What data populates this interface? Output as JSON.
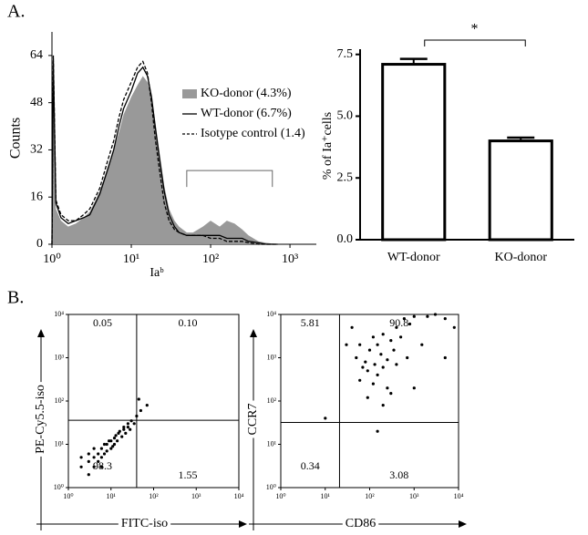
{
  "panels": [
    "A.",
    "B."
  ],
  "chart_data": [
    {
      "type": "line",
      "xlabel": "Iaᵇ",
      "ylabel": "Counts",
      "log_x": true,
      "xlim": [
        1,
        2150
      ],
      "ylim": [
        0,
        72
      ],
      "xticks": [
        {
          "value": 1,
          "label": "10⁰"
        },
        {
          "value": 10,
          "label": "10¹"
        },
        {
          "value": 100,
          "label": "10²"
        },
        {
          "value": 1000,
          "label": "10³"
        }
      ],
      "yticks": [
        0,
        16,
        32,
        48,
        64
      ],
      "x": [
        1,
        1.04,
        1.12,
        1.3,
        1.6,
        2,
        2.5,
        3,
        4,
        5,
        6,
        7,
        8,
        10,
        12,
        14,
        16,
        18,
        20,
        23,
        26,
        30,
        35,
        40,
        50,
        60,
        80,
        100,
        130,
        160,
        200,
        250,
        300,
        400,
        500,
        700
      ],
      "series": [
        {
          "name": "KO-donor (4.3%)",
          "color": "#999999",
          "style": "filled",
          "values": [
            0,
            55,
            12,
            8,
            6,
            7,
            9,
            11,
            18,
            26,
            32,
            38,
            44,
            50,
            54,
            57,
            55,
            50,
            42,
            30,
            20,
            12,
            8,
            6,
            4,
            4,
            6,
            8,
            6,
            8,
            7,
            5,
            3,
            1,
            0.5,
            0
          ]
        },
        {
          "name": "WT-donor (6.7%)",
          "color": "#000000",
          "style": "solid",
          "values": [
            0,
            62,
            14,
            9,
            7,
            8,
            9,
            10,
            17,
            25,
            32,
            40,
            46,
            52,
            58,
            60,
            57,
            50,
            40,
            28,
            18,
            10,
            6,
            4,
            3,
            3,
            3,
            3,
            3,
            2,
            2,
            2,
            1,
            0.5,
            0,
            0
          ]
        },
        {
          "name": "Isotype control (1.4)",
          "color": "#000000",
          "style": "dashed",
          "values": [
            0,
            64,
            15,
            10,
            8,
            8,
            10,
            12,
            19,
            28,
            35,
            43,
            49,
            55,
            60,
            62,
            58,
            48,
            36,
            24,
            14,
            8,
            5,
            4,
            3,
            3,
            3,
            2,
            2,
            1,
            1,
            1,
            0.5,
            0,
            0,
            0
          ]
        }
      ],
      "gate": {
        "x": [
          50,
          600
        ],
        "y": 25
      }
    },
    {
      "type": "bar",
      "ylabel": "% of Ia⁺cells",
      "categories": [
        "WT-donor",
        "KO-donor"
      ],
      "values": [
        7.1,
        4.0
      ],
      "errors": [
        0.22,
        0.13
      ],
      "color": "#ffffff",
      "edgecolor": "#000000",
      "ylim": [
        0,
        7.6
      ],
      "yticks": [
        {
          "value": 0,
          "label": "0.0"
        },
        {
          "value": 2.5,
          "label": "2.5"
        },
        {
          "value": 5,
          "label": "5.0"
        },
        {
          "value": 7.5,
          "label": "7.5"
        }
      ],
      "annotation": "*"
    },
    {
      "type": "scatter",
      "xlabel": "FITC-iso",
      "ylabel": "PE-Cy5.5-iso",
      "log_x": true,
      "log_y": true,
      "color": "#000000",
      "xlim": [
        1,
        10000
      ],
      "ylim": [
        1,
        10000
      ],
      "xticks": [
        {
          "value": 1,
          "label": "10⁰"
        },
        {
          "value": 10,
          "label": "10¹"
        },
        {
          "value": 100,
          "label": "10²"
        },
        {
          "value": 1000,
          "label": "10³"
        },
        {
          "value": 10000,
          "label": "10⁴"
        }
      ],
      "yticks": [
        {
          "value": 1,
          "label": "10⁰"
        },
        {
          "value": 10,
          "label": "10¹"
        },
        {
          "value": 100,
          "label": "10²"
        },
        {
          "value": 1000,
          "label": "10³"
        },
        {
          "value": 10000,
          "label": "10⁴"
        }
      ],
      "quadrant": {
        "x": 40,
        "y": 36
      },
      "quadrant_labels": [
        "0.05",
        "0.10",
        "98.3",
        "1.55"
      ],
      "x": [
        2,
        3,
        3,
        4,
        4,
        5,
        5,
        6,
        6,
        7,
        8,
        8,
        10,
        10,
        12,
        12,
        14,
        15,
        18,
        20,
        22,
        25,
        28,
        30,
        35,
        40,
        50,
        70,
        3,
        2,
        6,
        9,
        11,
        16,
        4,
        7,
        13,
        20,
        45,
        25
      ],
      "y": [
        3,
        2,
        4,
        3,
        5,
        4,
        6,
        5,
        8,
        6,
        7,
        10,
        8,
        12,
        10,
        14,
        12,
        18,
        15,
        22,
        18,
        25,
        22,
        35,
        30,
        45,
        60,
        80,
        6,
        5,
        3,
        12,
        9,
        20,
        8,
        10,
        16,
        25,
        110,
        30
      ]
    },
    {
      "type": "scatter",
      "xlabel": "CD86",
      "ylabel": "CCR7",
      "log_x": true,
      "log_y": true,
      "color": "#000000",
      "xlim": [
        1,
        10000
      ],
      "ylim": [
        1,
        10000
      ],
      "xticks": [
        {
          "value": 1,
          "label": "10⁰"
        },
        {
          "value": 10,
          "label": "10¹"
        },
        {
          "value": 100,
          "label": "10²"
        },
        {
          "value": 1000,
          "label": "10³"
        },
        {
          "value": 10000,
          "label": "10⁴"
        }
      ],
      "yticks": [
        {
          "value": 1,
          "label": "10⁰"
        },
        {
          "value": 10,
          "label": "10¹"
        },
        {
          "value": 100,
          "label": "10²"
        },
        {
          "value": 1000,
          "label": "10³"
        },
        {
          "value": 10000,
          "label": "10⁴"
        }
      ],
      "quadrant": {
        "x": 21,
        "y": 32
      },
      "quadrant_labels": [
        "5.81",
        "90.8",
        "0.34",
        "3.08"
      ],
      "x": [
        60,
        80,
        90,
        100,
        120,
        130,
        150,
        150,
        180,
        200,
        200,
        250,
        250,
        300,
        300,
        350,
        400,
        400,
        500,
        600,
        800,
        1000,
        2000,
        3000,
        5000,
        8000,
        1500,
        700,
        120,
        90,
        60,
        50,
        30,
        40,
        200,
        1000,
        5000,
        150,
        10,
        70
      ],
      "y": [
        2000,
        800,
        500,
        1500,
        3000,
        700,
        400,
        2000,
        1200,
        600,
        3500,
        900,
        200,
        2500,
        150,
        1500,
        5000,
        700,
        3000,
        8000,
        6000,
        9000,
        9000,
        10000,
        8000,
        5000,
        2000,
        1000,
        250,
        120,
        300,
        1000,
        2000,
        5000,
        80,
        200,
        1000,
        20,
        40,
        600
      ]
    }
  ]
}
